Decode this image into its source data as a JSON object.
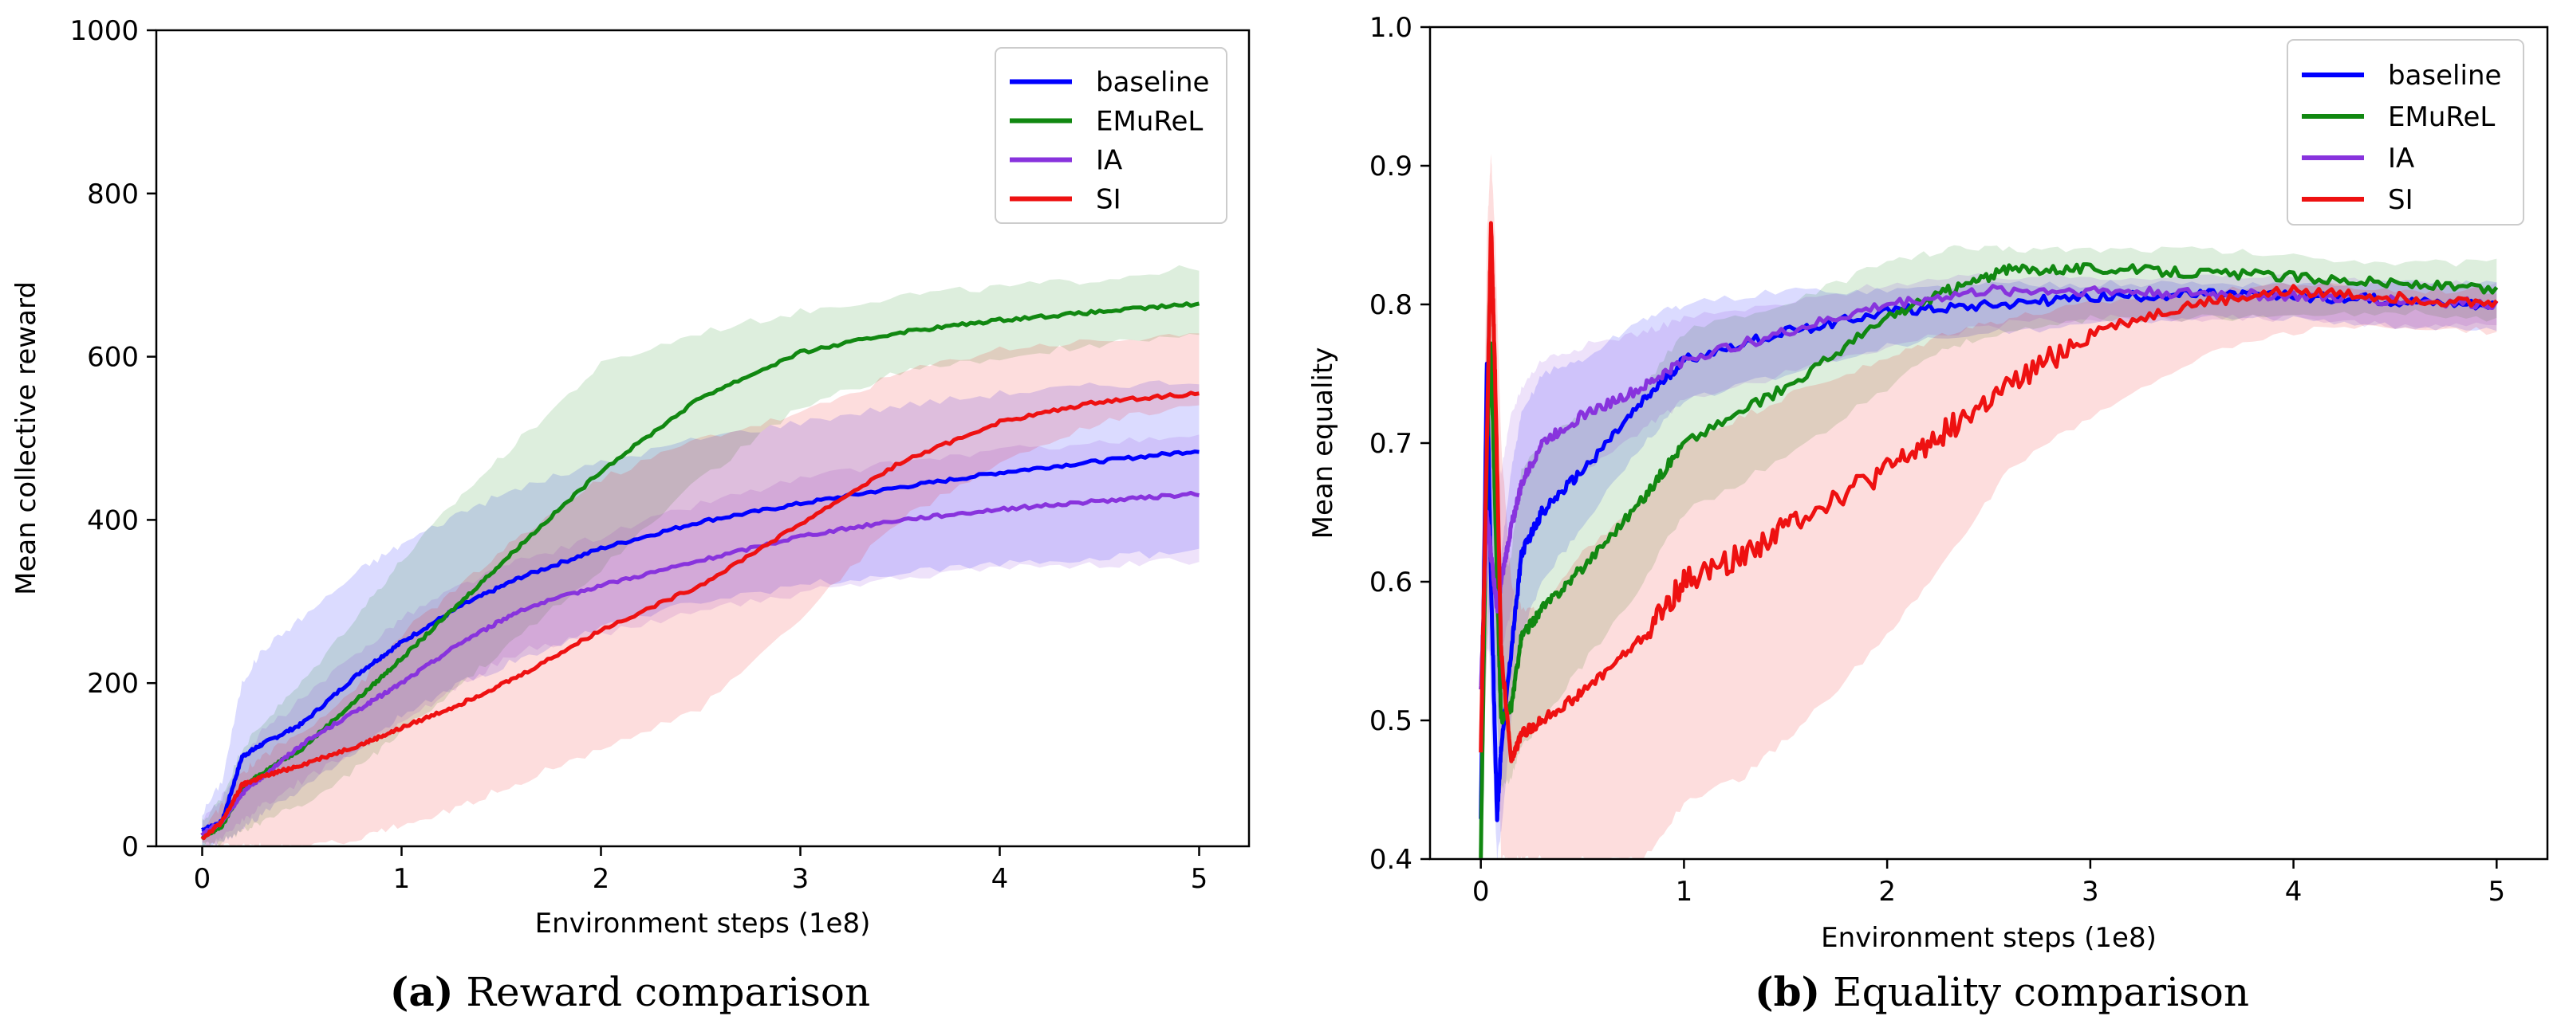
{
  "chart_data": [
    {
      "type": "line",
      "title": "",
      "xlabel": "Environment steps (1e8)",
      "ylabel": "Mean collective reward",
      "xlim": [
        -0.23,
        5.25
      ],
      "ylim": [
        0,
        1000
      ],
      "xticks": [
        "0",
        "1",
        "2",
        "3",
        "4",
        "5"
      ],
      "yticks": [
        "0",
        "200",
        "400",
        "600",
        "800",
        "1000"
      ],
      "caption_label": "(a)",
      "caption_text": " Reward comparison",
      "legend_position": "top-right",
      "series": [
        {
          "name": "baseline",
          "color": "#0000ff",
          "x": [
            0,
            0.1,
            0.2,
            0.3,
            0.5,
            0.8,
            1.0,
            1.3,
            1.6,
            2.0,
            2.5,
            3.0,
            3.5,
            4.0,
            4.5,
            5.0
          ],
          "y": [
            20,
            30,
            110,
            125,
            150,
            215,
            250,
            295,
            330,
            365,
            398,
            420,
            440,
            458,
            472,
            485
          ],
          "band_low": [
            0,
            5,
            20,
            40,
            70,
            120,
            160,
            200,
            230,
            270,
            300,
            320,
            335,
            345,
            355,
            360
          ],
          "band_high": [
            40,
            80,
            200,
            240,
            280,
            340,
            370,
            410,
            440,
            470,
            500,
            520,
            540,
            555,
            565,
            570
          ]
        },
        {
          "name": "EMuReL",
          "color": "#118811",
          "x": [
            0,
            0.1,
            0.2,
            0.3,
            0.5,
            0.8,
            1.0,
            1.3,
            1.6,
            2.0,
            2.5,
            3.0,
            3.5,
            4.0,
            4.5,
            5.0
          ],
          "y": [
            10,
            25,
            70,
            90,
            120,
            185,
            230,
            300,
            370,
            460,
            550,
            605,
            630,
            645,
            655,
            665
          ],
          "band_low": [
            0,
            5,
            20,
            30,
            50,
            100,
            140,
            200,
            260,
            340,
            450,
            540,
            580,
            600,
            615,
            625
          ],
          "band_high": [
            30,
            60,
            120,
            150,
            200,
            290,
            350,
            430,
            500,
            590,
            630,
            655,
            675,
            685,
            695,
            710
          ]
        },
        {
          "name": "IA",
          "color": "#8833dd",
          "x": [
            0,
            0.1,
            0.2,
            0.3,
            0.5,
            0.8,
            1.0,
            1.3,
            1.6,
            2.0,
            2.5,
            3.0,
            3.5,
            4.0,
            4.5,
            5.0
          ],
          "y": [
            15,
            30,
            65,
            85,
            125,
            170,
            200,
            250,
            290,
            320,
            350,
            380,
            400,
            413,
            423,
            432
          ],
          "band_low": [
            0,
            10,
            30,
            50,
            80,
            120,
            150,
            200,
            240,
            260,
            290,
            310,
            330,
            340,
            345,
            350
          ],
          "band_high": [
            30,
            60,
            110,
            140,
            180,
            240,
            280,
            320,
            350,
            380,
            420,
            450,
            470,
            485,
            495,
            500
          ]
        },
        {
          "name": "SI",
          "color": "#ee1111",
          "x": [
            0,
            0.1,
            0.2,
            0.3,
            0.5,
            0.8,
            1.0,
            1.3,
            1.6,
            2.0,
            2.5,
            3.0,
            3.5,
            4.0,
            4.5,
            5.0
          ],
          "y": [
            10,
            30,
            75,
            85,
            100,
            125,
            145,
            175,
            210,
            265,
            320,
            395,
            470,
            520,
            545,
            555
          ],
          "band_low": [
            0,
            0,
            0,
            0,
            0,
            10,
            25,
            50,
            80,
            120,
            170,
            280,
            400,
            470,
            520,
            545
          ],
          "band_high": [
            20,
            50,
            90,
            110,
            140,
            200,
            260,
            320,
            380,
            450,
            500,
            530,
            580,
            610,
            620,
            625
          ]
        }
      ]
    },
    {
      "type": "line",
      "title": "",
      "xlabel": "Environment steps (1e8)",
      "ylabel": "Mean equality",
      "xlim": [
        -0.25,
        5.25
      ],
      "ylim": [
        0.4,
        1.0
      ],
      "xticks": [
        "0",
        "1",
        "2",
        "3",
        "4",
        "5"
      ],
      "yticks": [
        "0.4",
        "0.5",
        "0.6",
        "0.7",
        "0.8",
        "0.9",
        "1.0"
      ],
      "caption_label": "(b)",
      "caption_text": " Equality comparison",
      "legend_position": "top-right",
      "series": [
        {
          "name": "baseline",
          "color": "#0000ff",
          "x": [
            0,
            0.03,
            0.05,
            0.08,
            0.1,
            0.15,
            0.2,
            0.3,
            0.5,
            0.8,
            1.0,
            1.5,
            2.0,
            2.5,
            3.0,
            3.5,
            4.0,
            4.5,
            5.0
          ],
          "y": [
            0.43,
            0.76,
            0.6,
            0.43,
            0.48,
            0.55,
            0.62,
            0.65,
            0.68,
            0.73,
            0.76,
            0.78,
            0.795,
            0.8,
            0.805,
            0.807,
            0.806,
            0.803,
            0.8
          ],
          "band_low": [
            0.4,
            0.62,
            0.5,
            0.4,
            0.42,
            0.5,
            0.56,
            0.6,
            0.64,
            0.7,
            0.73,
            0.75,
            0.77,
            0.78,
            0.785,
            0.79,
            0.79,
            0.785,
            0.78
          ],
          "band_high": [
            0.55,
            0.8,
            0.7,
            0.6,
            0.62,
            0.68,
            0.72,
            0.75,
            0.76,
            0.79,
            0.8,
            0.81,
            0.81,
            0.815,
            0.815,
            0.815,
            0.815,
            0.815,
            0.815
          ]
        },
        {
          "name": "EMuReL",
          "color": "#118811",
          "x": [
            0,
            0.03,
            0.05,
            0.08,
            0.1,
            0.15,
            0.2,
            0.3,
            0.5,
            0.8,
            1.0,
            1.5,
            2.0,
            2.3,
            2.6,
            3.0,
            3.5,
            4.0,
            4.5,
            5.0
          ],
          "y": [
            0.4,
            0.7,
            0.77,
            0.6,
            0.5,
            0.51,
            0.56,
            0.58,
            0.61,
            0.66,
            0.7,
            0.74,
            0.79,
            0.81,
            0.825,
            0.826,
            0.823,
            0.82,
            0.815,
            0.81
          ],
          "band_low": [
            0.4,
            0.55,
            0.6,
            0.5,
            0.45,
            0.46,
            0.48,
            0.5,
            0.54,
            0.6,
            0.65,
            0.69,
            0.74,
            0.77,
            0.78,
            0.79,
            0.79,
            0.79,
            0.795,
            0.79
          ],
          "band_high": [
            0.45,
            0.8,
            0.8,
            0.7,
            0.6,
            0.62,
            0.68,
            0.7,
            0.72,
            0.74,
            0.78,
            0.8,
            0.83,
            0.84,
            0.84,
            0.84,
            0.84,
            0.835,
            0.83,
            0.83
          ]
        },
        {
          "name": "IA",
          "color": "#8833dd",
          "x": [
            0,
            0.03,
            0.05,
            0.08,
            0.1,
            0.15,
            0.2,
            0.3,
            0.5,
            0.8,
            1.0,
            1.5,
            2.0,
            2.5,
            3.0,
            3.5,
            4.0,
            4.5,
            5.0
          ],
          "y": [
            0.52,
            0.65,
            0.62,
            0.58,
            0.6,
            0.64,
            0.67,
            0.7,
            0.72,
            0.74,
            0.76,
            0.78,
            0.8,
            0.81,
            0.81,
            0.808,
            0.806,
            0.803,
            0.8
          ],
          "band_low": [
            0.45,
            0.55,
            0.55,
            0.52,
            0.55,
            0.58,
            0.62,
            0.65,
            0.68,
            0.71,
            0.73,
            0.75,
            0.77,
            0.785,
            0.79,
            0.79,
            0.79,
            0.785,
            0.785
          ],
          "band_high": [
            0.6,
            0.75,
            0.7,
            0.66,
            0.68,
            0.72,
            0.74,
            0.76,
            0.77,
            0.78,
            0.79,
            0.8,
            0.815,
            0.82,
            0.82,
            0.82,
            0.82,
            0.815,
            0.815
          ]
        },
        {
          "name": "SI",
          "color": "#ee1111",
          "x": [
            0,
            0.03,
            0.05,
            0.07,
            0.1,
            0.15,
            0.2,
            0.3,
            0.5,
            0.8,
            1.0,
            1.3,
            1.6,
            2.0,
            2.3,
            2.6,
            3.0,
            3.5,
            4.0,
            4.5,
            5.0
          ],
          "y": [
            0.48,
            0.7,
            0.86,
            0.75,
            0.55,
            0.47,
            0.49,
            0.5,
            0.52,
            0.56,
            0.6,
            0.62,
            0.65,
            0.68,
            0.71,
            0.74,
            0.78,
            0.8,
            0.81,
            0.805,
            0.8
          ],
          "band_low": [
            0.4,
            0.55,
            0.7,
            0.6,
            0.4,
            0.4,
            0.4,
            0.4,
            0.4,
            0.4,
            0.44,
            0.46,
            0.5,
            0.56,
            0.62,
            0.68,
            0.72,
            0.76,
            0.78,
            0.785,
            0.78
          ],
          "band_high": [
            0.55,
            0.85,
            0.91,
            0.85,
            0.7,
            0.6,
            0.58,
            0.58,
            0.62,
            0.66,
            0.7,
            0.72,
            0.74,
            0.76,
            0.78,
            0.79,
            0.8,
            0.81,
            0.815,
            0.81,
            0.81
          ]
        }
      ]
    }
  ]
}
